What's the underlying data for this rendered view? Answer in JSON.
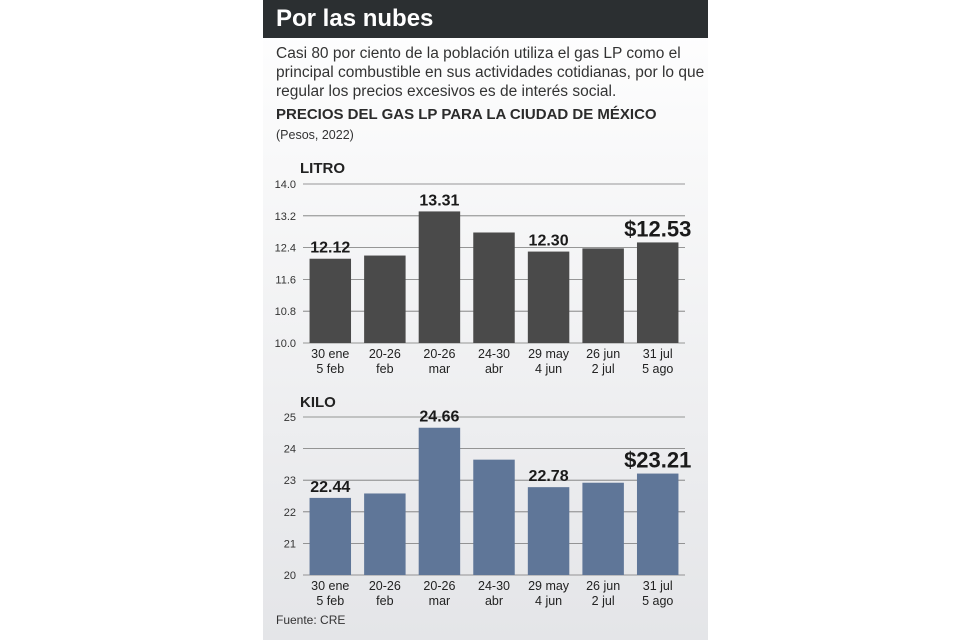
{
  "header": {
    "title": "Por las nubes"
  },
  "intro": {
    "text": "Casi 80 por ciento de la población utiliza el gas LP como el principal combustible en sus actividades cotidianas, por lo que regular los precios excesivos es de interés social."
  },
  "chart_heading": {
    "title": "PRECIOS DEL GAS LP PARA LA CIUDAD DE MÉXICO",
    "subtitle": "(Pesos, 2022)"
  },
  "source": "Fuente: CRE",
  "colors": {
    "header_bg": "#2b2f31",
    "litro_bar": "#4a4a4a",
    "kilo_bar": "#5f7698"
  },
  "chart_data": [
    {
      "type": "bar",
      "title": "LITRO",
      "categories": [
        [
          "30 ene",
          "5 feb"
        ],
        [
          "20-26",
          "feb"
        ],
        [
          "20-26",
          "mar"
        ],
        [
          "24-30",
          "abr"
        ],
        [
          "29 may",
          "4 jun"
        ],
        [
          "26 jun",
          "2 jul"
        ],
        [
          "31 jul",
          "5 ago"
        ]
      ],
      "values": [
        12.12,
        12.2,
        13.31,
        12.78,
        12.3,
        12.38,
        12.53
      ],
      "data_labels": [
        "12.12",
        "",
        "13.31",
        "",
        "12.30",
        "",
        "$12.53"
      ],
      "ylim": [
        10.0,
        14.0
      ],
      "yticks": [
        "10.0",
        "10.8",
        "11.6",
        "12.4",
        "13.2",
        "14.0"
      ],
      "grid": true
    },
    {
      "type": "bar",
      "title": "KILO",
      "categories": [
        [
          "30 ene",
          "5 feb"
        ],
        [
          "20-26",
          "feb"
        ],
        [
          "20-26",
          "mar"
        ],
        [
          "24-30",
          "abr"
        ],
        [
          "29 may",
          "4 jun"
        ],
        [
          "26 jun",
          "2 jul"
        ],
        [
          "31 jul",
          "5 ago"
        ]
      ],
      "values": [
        22.44,
        22.58,
        24.66,
        23.65,
        22.78,
        22.92,
        23.21
      ],
      "data_labels": [
        "22.44",
        "",
        "24.66",
        "",
        "22.78",
        "",
        "$23.21"
      ],
      "ylim": [
        20,
        25
      ],
      "yticks": [
        "20",
        "21",
        "22",
        "23",
        "24",
        "25"
      ],
      "grid": true
    }
  ]
}
